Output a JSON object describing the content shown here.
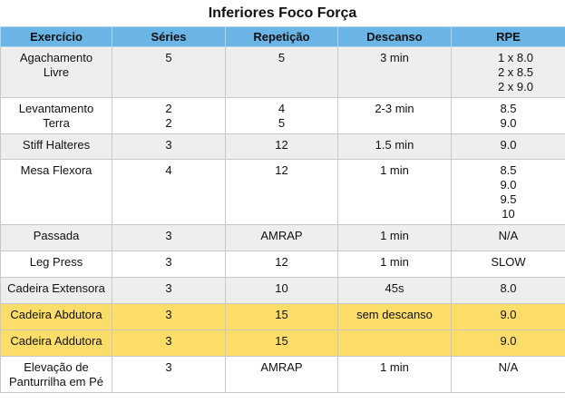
{
  "title": "Inferiores Foco Força",
  "columns": [
    "Exercício",
    "Séries",
    "Repetição",
    "Descanso",
    "RPE"
  ],
  "colors": {
    "header": "#6ab4e6",
    "gray_row": "#eeeeee",
    "white_row": "#ffffff",
    "highlight_row": "#fcdd6a"
  },
  "rows": [
    {
      "tone": "gray",
      "exercicio": [
        "Agachamento",
        "Livre"
      ],
      "series": [
        "5"
      ],
      "repeticao": [
        "5"
      ],
      "descanso": [
        "3 min"
      ],
      "rpe": [
        "1 x 8.0",
        "2 x 8.5",
        "2 x 9.0"
      ]
    },
    {
      "tone": "white",
      "exercicio": [
        "Levantamento",
        "Terra"
      ],
      "series": [
        "2",
        "2"
      ],
      "repeticao": [
        "4",
        "5"
      ],
      "descanso": [
        "2-3 min"
      ],
      "rpe": [
        "8.5",
        "9.0"
      ]
    },
    {
      "tone": "gray",
      "exercicio": [
        "Stiff Halteres"
      ],
      "series": [
        "3"
      ],
      "repeticao": [
        "12"
      ],
      "descanso": [
        "1.5 min"
      ],
      "rpe": [
        "9.0"
      ]
    },
    {
      "tone": "white",
      "exercicio": [
        "Mesa Flexora"
      ],
      "series": [
        "4"
      ],
      "repeticao": [
        "12"
      ],
      "descanso": [
        "1 min"
      ],
      "rpe": [
        "8.5",
        "9.0",
        "9.5",
        "10"
      ]
    },
    {
      "tone": "gray",
      "exercicio": [
        "Passada"
      ],
      "series": [
        "3"
      ],
      "repeticao": [
        "AMRAP"
      ],
      "descanso": [
        "1 min"
      ],
      "rpe": [
        "N/A"
      ]
    },
    {
      "tone": "white",
      "exercicio": [
        "Leg Press"
      ],
      "series": [
        "3"
      ],
      "repeticao": [
        "12"
      ],
      "descanso": [
        "1 min"
      ],
      "rpe": [
        "SLOW"
      ]
    },
    {
      "tone": "gray",
      "exercicio": [
        "Cadeira Extensora"
      ],
      "series": [
        "3"
      ],
      "repeticao": [
        "10"
      ],
      "descanso": [
        "45s"
      ],
      "rpe": [
        "8.0"
      ]
    },
    {
      "tone": "yellow",
      "exercicio": [
        "Cadeira Abdutora"
      ],
      "series": [
        "3"
      ],
      "repeticao": [
        "15"
      ],
      "descanso": [
        "sem descanso"
      ],
      "rpe": [
        "9.0"
      ]
    },
    {
      "tone": "yellow",
      "exercicio": [
        "Cadeira Addutora"
      ],
      "series": [
        "3"
      ],
      "repeticao": [
        "15"
      ],
      "descanso": [
        ""
      ],
      "rpe": [
        "9.0"
      ]
    },
    {
      "tone": "white",
      "exercicio": [
        "Elevação de",
        "Panturrilha em Pé"
      ],
      "series": [
        "3"
      ],
      "repeticao": [
        "AMRAP"
      ],
      "descanso": [
        "1 min"
      ],
      "rpe": [
        "N/A"
      ]
    }
  ]
}
